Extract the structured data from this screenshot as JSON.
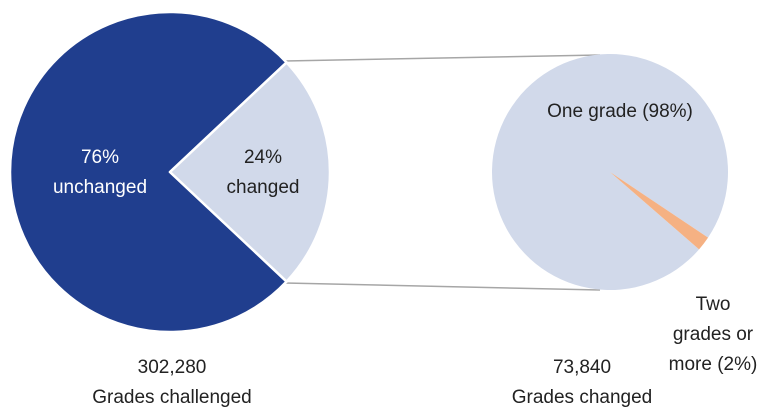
{
  "chart_data": [
    {
      "type": "pie",
      "categories": [
        "unchanged",
        "changed"
      ],
      "values": [
        76,
        24
      ],
      "value_labels": [
        "76%",
        "24%"
      ],
      "colors": [
        "#203e8e",
        "#d1d9ea"
      ],
      "total": "302,280",
      "subtitle": "Grades challenged"
    },
    {
      "type": "pie",
      "categories": [
        "One grade",
        "Two grades or more"
      ],
      "values": [
        98,
        2
      ],
      "value_labels": [
        "(98%)",
        "(2%)"
      ],
      "colors": [
        "#d1d9ea",
        "#f5b183"
      ],
      "total": "73,840",
      "subtitle": "Grades changed"
    }
  ]
}
